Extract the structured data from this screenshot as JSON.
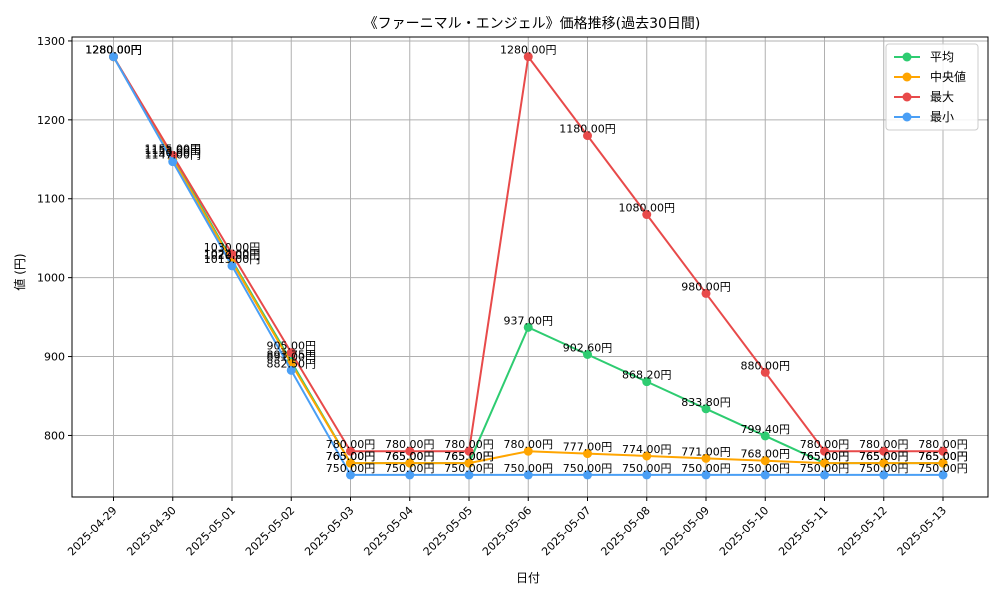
{
  "chart_data": {
    "type": "line",
    "title": "《ファーニマル・エンジェル》価格推移(過去30日間)",
    "xlabel": "日付",
    "ylabel": "値 (円)",
    "ylim": [
      722,
      1305
    ],
    "yticks": [
      800,
      900,
      1000,
      1100,
      1200,
      1300
    ],
    "grid": true,
    "legend_position": "top-right",
    "label_suffix": "円",
    "x": [
      "2025-04-29",
      "2025-04-30",
      "2025-05-01",
      "2025-05-02",
      "2025-05-03",
      "2025-05-04",
      "2025-05-05",
      "2025-05-06",
      "2025-05-07",
      "2025-05-08",
      "2025-05-09",
      "2025-05-10",
      "2025-05-11",
      "2025-05-12",
      "2025-05-13"
    ],
    "series": [
      {
        "name": "平均",
        "color": "#2ecc71",
        "values": [
          1280.0,
          1153.0,
          1022.0,
          893.75,
          765.0,
          765.0,
          765.0,
          937.0,
          902.6,
          868.2,
          833.8,
          799.4,
          765.0,
          765.0,
          765.0
        ]
      },
      {
        "name": "中央値",
        "color": "#ffa500",
        "values": [
          1280.0,
          1150.0,
          1020.0,
          891.0,
          765.0,
          765.0,
          765.0,
          780.0,
          777.0,
          774.0,
          771.0,
          768.0,
          765.0,
          765.0,
          765.0
        ]
      },
      {
        "name": "最大",
        "color": "#e84a4a",
        "values": [
          1280.0,
          1155.0,
          1030.0,
          905.0,
          780.0,
          780.0,
          780.0,
          1280.0,
          1180.0,
          1080.0,
          980.0,
          880.0,
          780.0,
          780.0,
          780.0
        ]
      },
      {
        "name": "最小",
        "color": "#4a9ff5",
        "values": [
          1280.0,
          1147.0,
          1015.0,
          882.5,
          750.0,
          750.0,
          750.0,
          750.0,
          750.0,
          750.0,
          750.0,
          750.0,
          750.0,
          750.0,
          750.0
        ]
      }
    ]
  }
}
